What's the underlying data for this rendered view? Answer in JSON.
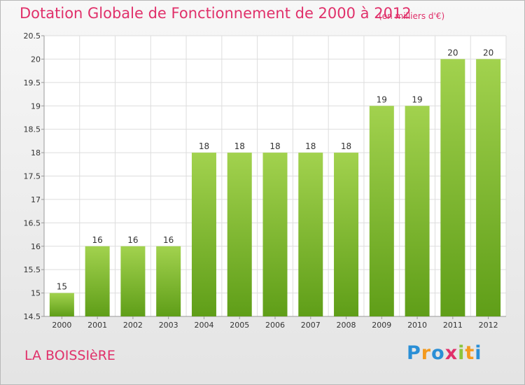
{
  "chart_data": {
    "type": "bar",
    "title": "Dotation Globale de Fonctionnement de 2000 à 2012",
    "unit_note": "(en milliers d'€)",
    "categories": [
      "2000",
      "2001",
      "2002",
      "2003",
      "2004",
      "2005",
      "2006",
      "2007",
      "2008",
      "2009",
      "2010",
      "2011",
      "2012"
    ],
    "values": [
      15,
      16,
      16,
      16,
      18,
      18,
      18,
      18,
      18,
      19,
      19,
      20,
      20
    ],
    "ylim": [
      14.5,
      20.5
    ],
    "yticks": [
      14.5,
      15,
      15.5,
      16,
      16.5,
      17,
      17.5,
      18,
      18.5,
      19,
      19.5,
      20,
      20.5
    ],
    "grid": true,
    "bar_color": "#7dba2c"
  },
  "footer": {
    "place_name": "LA BOISSIèRE",
    "logo_text": "Proxiti"
  },
  "colors": {
    "accent": "#e0306a"
  }
}
